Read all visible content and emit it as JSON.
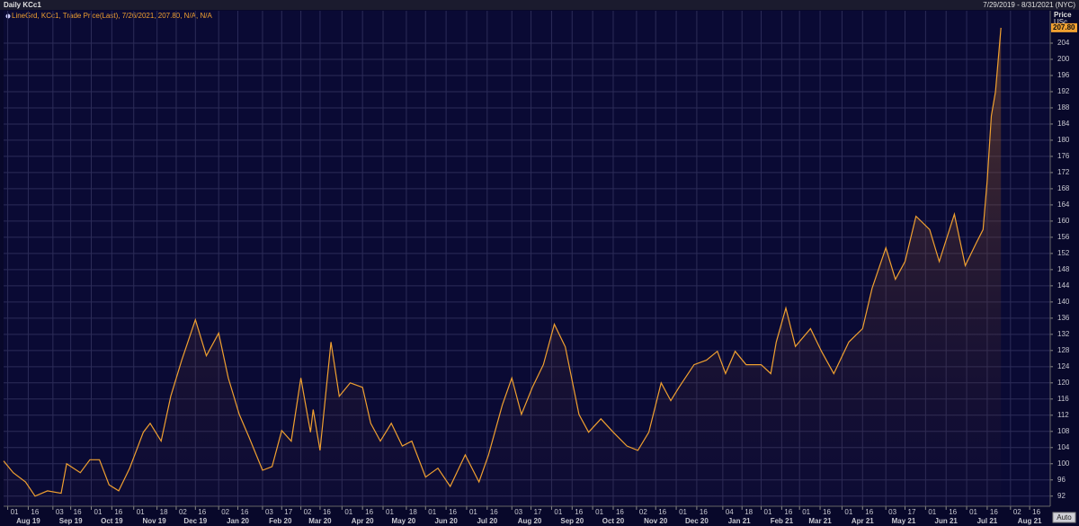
{
  "chart_data": {
    "type": "line",
    "title": "Daily KCc1",
    "date_range": "7/29/2019 - 8/31/2021 (NYC)",
    "y_axis_title": "Price",
    "y_axis_unit": "USc",
    "last_value": 207.8,
    "last_value_label": "207.80",
    "button": "Auto",
    "grid": true,
    "xlim": [
      "2019-07-29",
      "2021-08-31"
    ],
    "ylim": [
      89.5,
      212
    ],
    "yticks": [
      92,
      96,
      100,
      104,
      108,
      112,
      116,
      120,
      124,
      128,
      132,
      136,
      140,
      144,
      148,
      152,
      156,
      160,
      164,
      168,
      172,
      176,
      180,
      184,
      188,
      192,
      196,
      200,
      204
    ],
    "xticks": [
      {
        "value": "2019-08-01",
        "label": "01"
      },
      {
        "value": "2019-08-16",
        "label": "16"
      },
      {
        "value": "2019-09-03",
        "label": "03"
      },
      {
        "value": "2019-09-16",
        "label": "16"
      },
      {
        "value": "2019-10-01",
        "label": "01"
      },
      {
        "value": "2019-10-16",
        "label": "16"
      },
      {
        "value": "2019-11-01",
        "label": "01"
      },
      {
        "value": "2019-11-18",
        "label": "18"
      },
      {
        "value": "2019-12-02",
        "label": "02"
      },
      {
        "value": "2019-12-16",
        "label": "16"
      },
      {
        "value": "2020-01-02",
        "label": "02"
      },
      {
        "value": "2020-01-16",
        "label": "16"
      },
      {
        "value": "2020-02-03",
        "label": "03"
      },
      {
        "value": "2020-02-17",
        "label": "17"
      },
      {
        "value": "2020-03-02",
        "label": "02"
      },
      {
        "value": "2020-03-16",
        "label": "16"
      },
      {
        "value": "2020-04-01",
        "label": "01"
      },
      {
        "value": "2020-04-16",
        "label": "16"
      },
      {
        "value": "2020-05-01",
        "label": "01"
      },
      {
        "value": "2020-05-18",
        "label": "18"
      },
      {
        "value": "2020-06-01",
        "label": "01"
      },
      {
        "value": "2020-06-16",
        "label": "16"
      },
      {
        "value": "2020-07-01",
        "label": "01"
      },
      {
        "value": "2020-07-16",
        "label": "16"
      },
      {
        "value": "2020-08-03",
        "label": "03"
      },
      {
        "value": "2020-08-17",
        "label": "17"
      },
      {
        "value": "2020-09-01",
        "label": "01"
      },
      {
        "value": "2020-09-16",
        "label": "16"
      },
      {
        "value": "2020-10-01",
        "label": "01"
      },
      {
        "value": "2020-10-16",
        "label": "16"
      },
      {
        "value": "2020-11-02",
        "label": "02"
      },
      {
        "value": "2020-11-16",
        "label": "16"
      },
      {
        "value": "2020-12-01",
        "label": "01"
      },
      {
        "value": "2020-12-16",
        "label": "16"
      },
      {
        "value": "2021-01-04",
        "label": "04"
      },
      {
        "value": "2021-01-18",
        "label": "18"
      },
      {
        "value": "2021-02-01",
        "label": "01"
      },
      {
        "value": "2021-02-16",
        "label": "16"
      },
      {
        "value": "2021-03-01",
        "label": "01"
      },
      {
        "value": "2021-03-16",
        "label": "16"
      },
      {
        "value": "2021-04-01",
        "label": "01"
      },
      {
        "value": "2021-04-16",
        "label": "16"
      },
      {
        "value": "2021-05-03",
        "label": "03"
      },
      {
        "value": "2021-05-17",
        "label": "17"
      },
      {
        "value": "2021-06-01",
        "label": "01"
      },
      {
        "value": "2021-06-16",
        "label": "16"
      },
      {
        "value": "2021-07-01",
        "label": "01"
      },
      {
        "value": "2021-07-16",
        "label": "16"
      },
      {
        "value": "2021-08-02",
        "label": "02"
      },
      {
        "value": "2021-08-16",
        "label": "16"
      }
    ],
    "month_labels": [
      {
        "value": "2019-08-01",
        "label": "Aug 19"
      },
      {
        "value": "2019-09-01",
        "label": "Sep 19"
      },
      {
        "value": "2019-10-01",
        "label": "Oct 19"
      },
      {
        "value": "2019-11-01",
        "label": "Nov 19"
      },
      {
        "value": "2019-12-01",
        "label": "Dec 19"
      },
      {
        "value": "2020-01-01",
        "label": "Jan 20"
      },
      {
        "value": "2020-02-01",
        "label": "Feb 20"
      },
      {
        "value": "2020-03-01",
        "label": "Mar 20"
      },
      {
        "value": "2020-04-01",
        "label": "Apr 20"
      },
      {
        "value": "2020-05-01",
        "label": "May 20"
      },
      {
        "value": "2020-06-01",
        "label": "Jun 20"
      },
      {
        "value": "2020-07-01",
        "label": "Jul 20"
      },
      {
        "value": "2020-08-01",
        "label": "Aug 20"
      },
      {
        "value": "2020-09-01",
        "label": "Sep 20"
      },
      {
        "value": "2020-10-01",
        "label": "Oct 20"
      },
      {
        "value": "2020-11-01",
        "label": "Nov 20"
      },
      {
        "value": "2020-12-01",
        "label": "Dec 20"
      },
      {
        "value": "2021-01-01",
        "label": "Jan 21"
      },
      {
        "value": "2021-02-01",
        "label": "Feb 21"
      },
      {
        "value": "2021-03-01",
        "label": "Mar 21"
      },
      {
        "value": "2021-04-01",
        "label": "Apr 21"
      },
      {
        "value": "2021-05-01",
        "label": "May 21"
      },
      {
        "value": "2021-06-01",
        "label": "Jun 21"
      },
      {
        "value": "2021-07-01",
        "label": "Jul 21"
      },
      {
        "value": "2021-08-01",
        "label": "Aug 21"
      }
    ],
    "x": [
      "2019-07-29",
      "2019-08-05",
      "2019-08-14",
      "2019-08-21",
      "2019-08-30",
      "2019-09-09",
      "2019-09-13",
      "2019-09-23",
      "2019-09-30",
      "2019-10-07",
      "2019-10-14",
      "2019-10-21",
      "2019-10-29",
      "2019-11-08",
      "2019-11-13",
      "2019-11-21",
      "2019-11-28",
      "2019-12-06",
      "2019-12-16",
      "2019-12-24",
      "2020-01-02",
      "2020-01-09",
      "2020-01-17",
      "2020-01-24",
      "2020-02-03",
      "2020-02-10",
      "2020-02-17",
      "2020-02-24",
      "2020-03-02",
      "2020-03-09",
      "2020-03-11",
      "2020-03-16",
      "2020-03-24",
      "2020-03-30",
      "2020-04-07",
      "2020-04-16",
      "2020-04-22",
      "2020-04-29",
      "2020-05-07",
      "2020-05-15",
      "2020-05-22",
      "2020-06-01",
      "2020-06-10",
      "2020-06-19",
      "2020-06-30",
      "2020-07-10",
      "2020-07-17",
      "2020-07-27",
      "2020-08-03",
      "2020-08-10",
      "2020-08-18",
      "2020-08-26",
      "2020-09-03",
      "2020-09-11",
      "2020-09-21",
      "2020-09-28",
      "2020-10-07",
      "2020-10-16",
      "2020-10-26",
      "2020-11-03",
      "2020-11-11",
      "2020-11-20",
      "2020-11-27",
      "2020-12-03",
      "2020-12-14",
      "2020-12-23",
      "2020-12-31",
      "2021-01-06",
      "2021-01-13",
      "2021-01-21",
      "2021-02-01",
      "2021-02-08",
      "2021-02-12",
      "2021-02-19",
      "2021-02-26",
      "2021-03-09",
      "2021-03-17",
      "2021-03-26",
      "2021-04-06",
      "2021-04-16",
      "2021-04-23",
      "2021-05-03",
      "2021-05-10",
      "2021-05-17",
      "2021-05-25",
      "2021-06-04",
      "2021-06-11",
      "2021-06-22",
      "2021-06-30",
      "2021-07-08",
      "2021-07-13",
      "2021-07-16",
      "2021-07-19",
      "2021-07-22",
      "2021-07-26"
    ],
    "series": [
      {
        "name": "LineGrd, KCc1, Trade Price(Last), 7/26/2021, 207.80, N/A, N/A",
        "color": "#f0a030",
        "values": [
          100.7,
          97.8,
          95.5,
          92.0,
          93.3,
          92.7,
          100.0,
          97.8,
          101.0,
          101.0,
          94.8,
          93.3,
          98.9,
          107.8,
          110.0,
          105.6,
          116.7,
          125.6,
          135.6,
          126.7,
          132.3,
          121.2,
          112.2,
          106.7,
          98.4,
          99.3,
          108.2,
          105.6,
          121.2,
          107.8,
          113.4,
          103.3,
          130.1,
          116.7,
          120.0,
          118.9,
          110.0,
          105.6,
          110.0,
          104.4,
          105.6,
          96.7,
          98.9,
          94.4,
          102.2,
          95.5,
          102.2,
          114.5,
          121.2,
          112.2,
          118.9,
          124.5,
          134.5,
          128.9,
          112.2,
          107.8,
          111.1,
          107.8,
          104.4,
          103.3,
          107.8,
          120.0,
          115.6,
          118.9,
          124.5,
          125.6,
          127.8,
          122.3,
          127.8,
          124.5,
          124.5,
          122.3,
          130.1,
          138.5,
          129.0,
          133.4,
          127.8,
          122.3,
          130.1,
          133.4,
          143.4,
          153.4,
          145.6,
          150.0,
          161.2,
          157.9,
          150.0,
          161.7,
          149.0,
          154.6,
          157.9,
          170.0,
          186.0,
          192.0,
          207.8
        ]
      }
    ]
  }
}
